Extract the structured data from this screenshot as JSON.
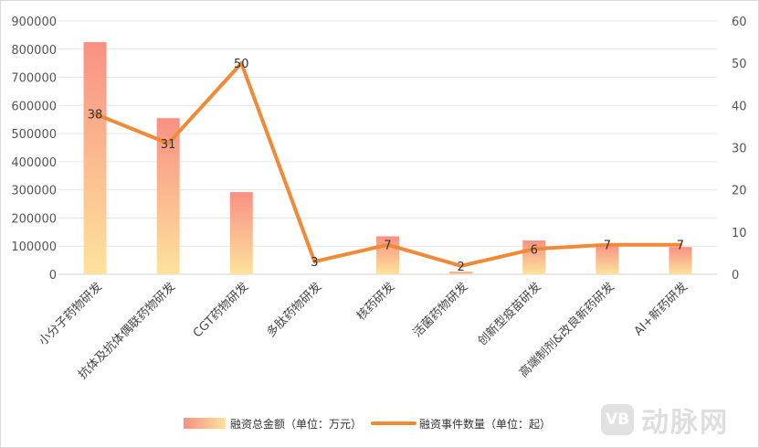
{
  "chart_data": {
    "type": "bar",
    "categories": [
      "小分子药物研发",
      "抗体及抗体偶联药物研发",
      "CGT药物研发",
      "多肽药物研发",
      "核药研发",
      "活菌药物研发",
      "创新型疫苗研发",
      "高端制剂&改良新药研发",
      "AI+新药研发"
    ],
    "series": [
      {
        "name": "融资总金额（单位：万元）",
        "type": "bar",
        "axis": "left",
        "values": [
          825000,
          555000,
          292000,
          0,
          135000,
          9000,
          120000,
          108000,
          97000
        ],
        "color_top": "#f99083",
        "color_bottom": "#fde39c"
      },
      {
        "name": "融资事件数量（单位：起）",
        "type": "line",
        "axis": "right",
        "values": [
          38,
          31,
          50,
          3,
          7,
          2,
          6,
          7,
          7
        ],
        "color": "#f08a36"
      }
    ],
    "y_left": {
      "min": 0,
      "max": 900000,
      "ticks": [
        0,
        100000,
        200000,
        300000,
        400000,
        500000,
        600000,
        700000,
        800000,
        900000
      ]
    },
    "y_right": {
      "min": 0,
      "max": 60,
      "ticks": [
        0,
        10,
        20,
        30,
        40,
        50,
        60
      ]
    },
    "grid": true,
    "legend_position": "bottom-center"
  },
  "watermark": {
    "logo_text": "VB",
    "text": "动脉网"
  }
}
